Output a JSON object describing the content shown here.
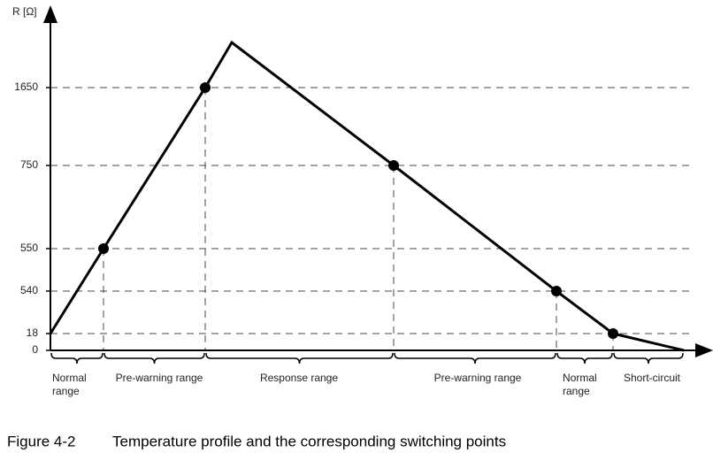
{
  "axis": {
    "y_label": "R [Ω]",
    "y_ticks": [
      "1650",
      "750",
      "550",
      "540",
      "18",
      "0"
    ]
  },
  "ranges": [
    {
      "lines": [
        "Normal",
        "range"
      ]
    },
    {
      "lines": [
        "Pre-warning range"
      ]
    },
    {
      "lines": [
        "Response range"
      ]
    },
    {
      "lines": [
        "Pre-warning range"
      ]
    },
    {
      "lines": [
        "Normal",
        "range"
      ]
    },
    {
      "lines": [
        "Short-circuit"
      ]
    }
  ],
  "caption": {
    "number": "Figure 4-2",
    "text": "Temperature profile and the corresponding switching points"
  }
}
